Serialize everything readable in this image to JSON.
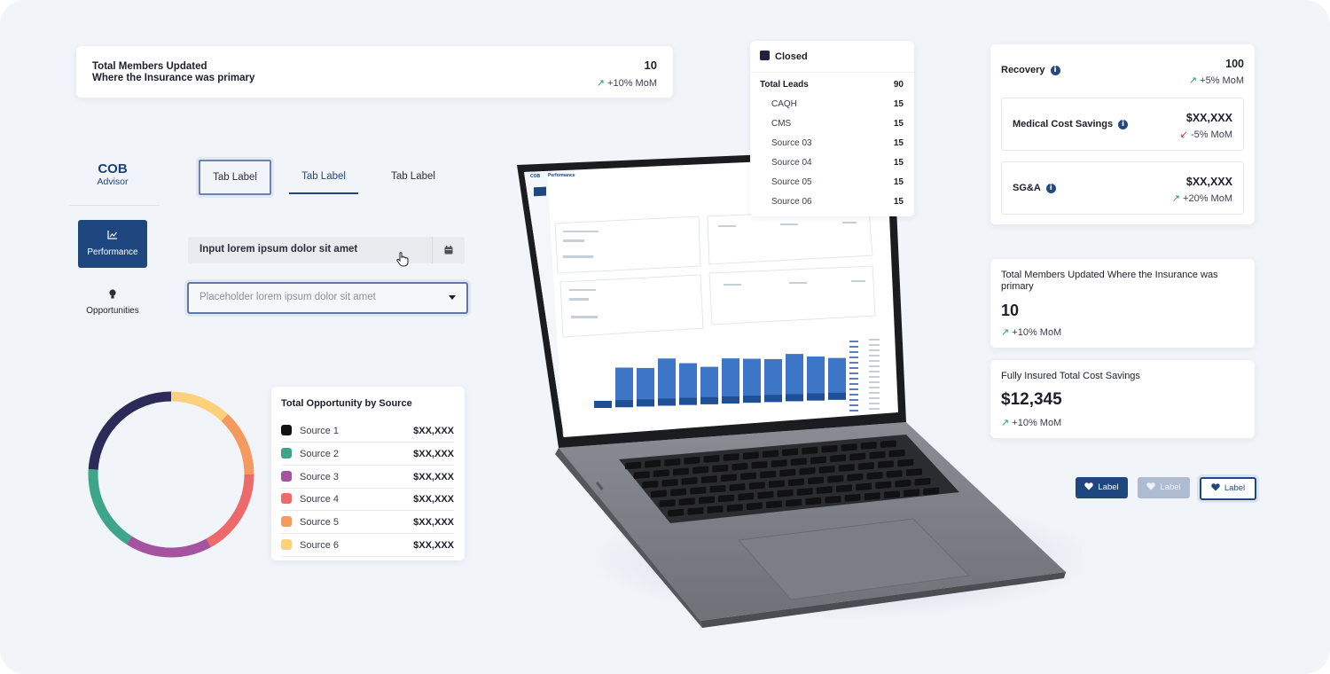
{
  "members_card": {
    "title": "Total Members Updated\nWhere the Insurance was primary",
    "title_line1": "Total Members Updated",
    "title_line2": "Where the Insurance was primary",
    "value": "10",
    "change": "+10% MoM"
  },
  "brand": {
    "line1": "COB",
    "line2": "Advisor"
  },
  "nav": {
    "items": [
      {
        "label": "Performance",
        "icon": "chart-icon",
        "active": true
      },
      {
        "label": "Opportunities",
        "icon": "lightbulb-icon",
        "active": false
      }
    ]
  },
  "tabs": [
    {
      "label": "Tab Label",
      "state": "focused"
    },
    {
      "label": "Tab Label",
      "state": "selected"
    },
    {
      "label": "Tab Label",
      "state": "default"
    }
  ],
  "date_input": {
    "value": "Input lorem ipsum dolor sit amet",
    "icon": "calendar-icon"
  },
  "select_input": {
    "placeholder": "Placeholder lorem ipsum dolor sit amet"
  },
  "opportunity": {
    "title": "Total Opportunity by Source",
    "sources": [
      {
        "name": "Source 1",
        "value": "$XX,XXX",
        "color": "#111111"
      },
      {
        "name": "Source 2",
        "value": "$XX,XXX",
        "color": "#3fa58a"
      },
      {
        "name": "Source 3",
        "value": "$XX,XXX",
        "color": "#a4539f"
      },
      {
        "name": "Source 4",
        "value": "$XX,XXX",
        "color": "#ee6a6a"
      },
      {
        "name": "Source 5",
        "value": "$XX,XXX",
        "color": "#f59a5e"
      },
      {
        "name": "Source 6",
        "value": "$XX,XXX",
        "color": "#fdd07c"
      }
    ]
  },
  "donut_segments": [
    {
      "color": "#fdd07c",
      "fraction": 0.12
    },
    {
      "color": "#f59a5e",
      "fraction": 0.13
    },
    {
      "color": "#ee6a6a",
      "fraction": 0.17
    },
    {
      "color": "#a4539f",
      "fraction": 0.17
    },
    {
      "color": "#3fa58a",
      "fraction": 0.17
    },
    {
      "color": "#2b2a59",
      "fraction": 0.24
    }
  ],
  "closed": {
    "header": "Closed",
    "total_label": "Total Leads",
    "total_value": "90",
    "rows": [
      {
        "name": "CAQH",
        "value": "15"
      },
      {
        "name": "CMS",
        "value": "15"
      },
      {
        "name": "Source 03",
        "value": "15"
      },
      {
        "name": "Source 04",
        "value": "15"
      },
      {
        "name": "Source 05",
        "value": "15"
      },
      {
        "name": "Source 06",
        "value": "15"
      }
    ]
  },
  "recovery": {
    "label": "Recovery",
    "value": "100",
    "change": "+5% MoM",
    "medical": {
      "label": "Medical Cost Savings",
      "value": "$XX,XXX",
      "change": "-5% MoM"
    },
    "sga": {
      "label": "SG&A",
      "value": "$XX,XXX",
      "change": "+20% MoM"
    }
  },
  "stat_members": {
    "label": "Total Members Updated Where the Insurance was primary",
    "value": "10",
    "change": "+10% MoM"
  },
  "stat_savings": {
    "label": "Fully Insured Total Cost Savings",
    "value": "$12,345",
    "change": "+10% MoM"
  },
  "label_buttons": [
    {
      "label": "Label",
      "state": "default"
    },
    {
      "label": "Label",
      "state": "disabled"
    },
    {
      "label": "Label",
      "state": "focused"
    }
  ],
  "laptop_screen": {
    "brand": "COB",
    "title": "Performance",
    "bars": [
      {
        "value": 8
      },
      {
        "value": 72
      },
      {
        "value": 70
      },
      {
        "value": 86
      },
      {
        "value": 76
      },
      {
        "value": 68
      },
      {
        "value": 82
      },
      {
        "value": 80
      },
      {
        "value": 78
      },
      {
        "value": 86
      },
      {
        "value": 80
      },
      {
        "value": 76
      }
    ]
  }
}
